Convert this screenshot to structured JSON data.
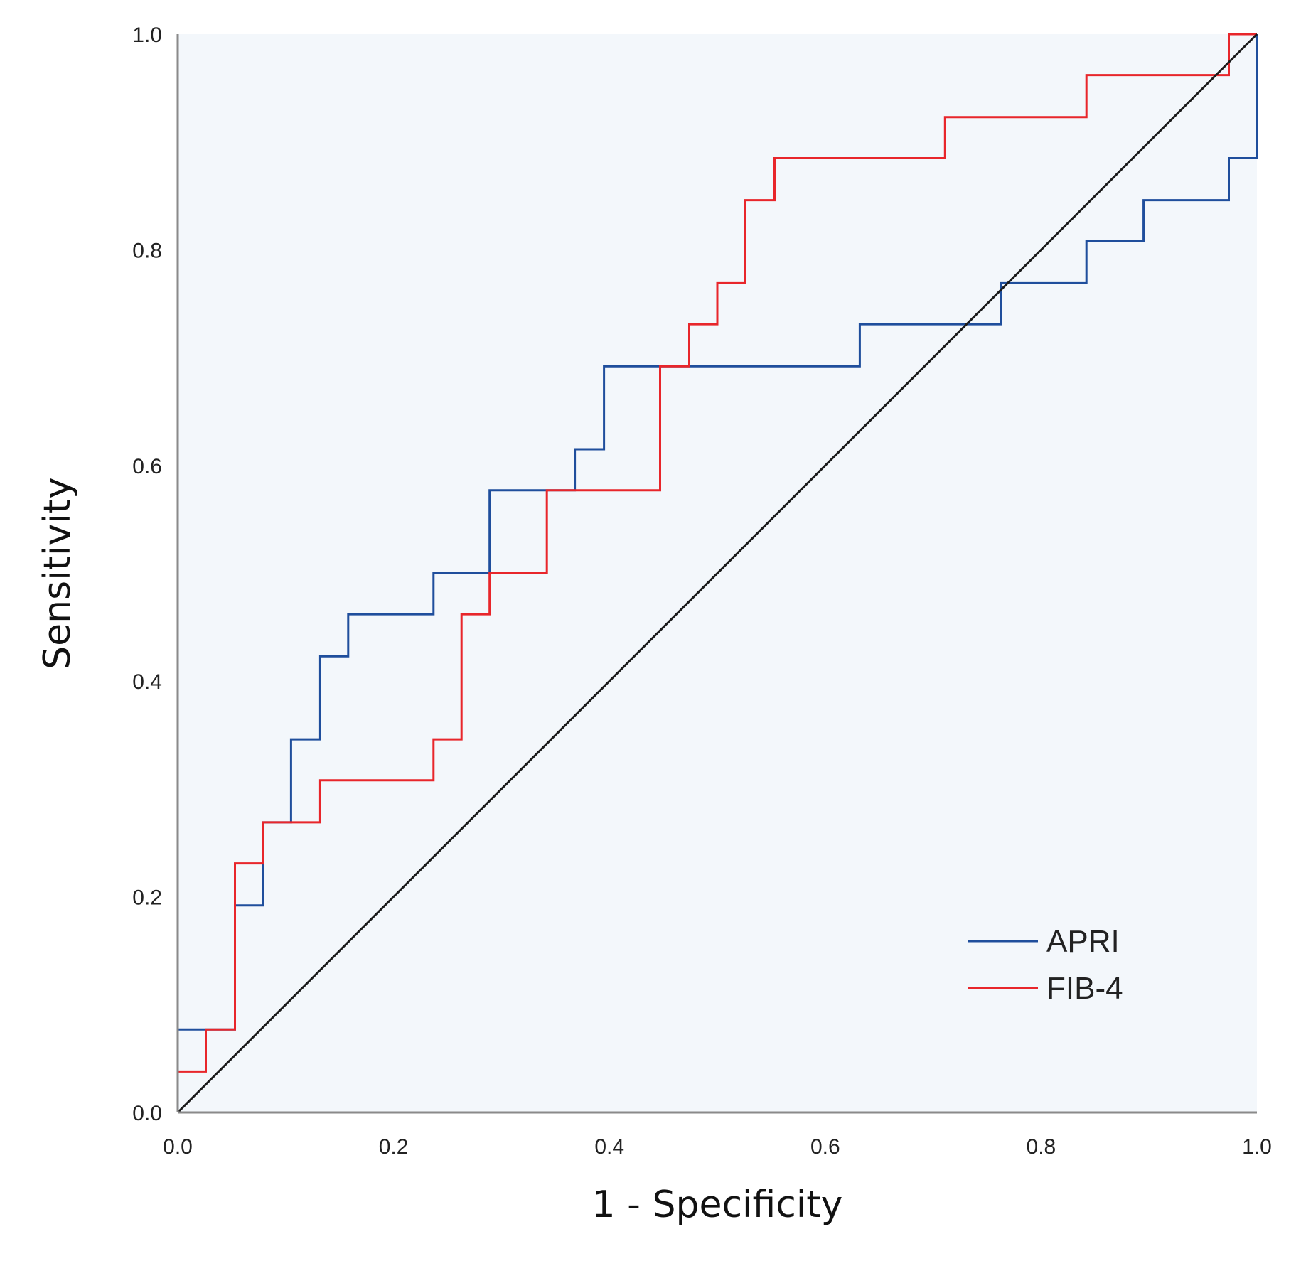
{
  "chart_data": {
    "type": "line",
    "title": "",
    "xlabel": "1 - Specificity",
    "ylabel": "Sensitivity",
    "xlim": [
      0,
      1
    ],
    "ylim": [
      0,
      1
    ],
    "xticks": [
      "0.0",
      "0.2",
      "0.4",
      "0.6",
      "0.8",
      "1.0"
    ],
    "yticks": [
      "0.0",
      "0.2",
      "0.4",
      "0.6",
      "0.8",
      "1.0"
    ],
    "grid": false,
    "legend_position": "bottom-right",
    "plot_background": "#f3f7fb",
    "series": [
      {
        "name": "APRI",
        "color": "#1f4e9c",
        "step": true,
        "points": [
          [
            0,
            0
          ],
          [
            0,
            0.077
          ],
          [
            0.053,
            0.077
          ],
          [
            0.053,
            0.192
          ],
          [
            0.079,
            0.192
          ],
          [
            0.079,
            0.269
          ],
          [
            0.105,
            0.269
          ],
          [
            0.105,
            0.346
          ],
          [
            0.132,
            0.346
          ],
          [
            0.132,
            0.423
          ],
          [
            0.158,
            0.423
          ],
          [
            0.158,
            0.462
          ],
          [
            0.237,
            0.462
          ],
          [
            0.237,
            0.5
          ],
          [
            0.289,
            0.5
          ],
          [
            0.289,
            0.577
          ],
          [
            0.368,
            0.577
          ],
          [
            0.368,
            0.615
          ],
          [
            0.395,
            0.615
          ],
          [
            0.395,
            0.692
          ],
          [
            0.632,
            0.692
          ],
          [
            0.632,
            0.731
          ],
          [
            0.763,
            0.731
          ],
          [
            0.763,
            0.769
          ],
          [
            0.842,
            0.769
          ],
          [
            0.842,
            0.808
          ],
          [
            0.895,
            0.808
          ],
          [
            0.895,
            0.846
          ],
          [
            0.974,
            0.846
          ],
          [
            0.974,
            0.885
          ],
          [
            1,
            0.885
          ],
          [
            1,
            1
          ]
        ]
      },
      {
        "name": "FIB-4",
        "color": "#e8262b",
        "step": true,
        "points": [
          [
            0,
            0
          ],
          [
            0,
            0.038
          ],
          [
            0.026,
            0.038
          ],
          [
            0.026,
            0.077
          ],
          [
            0.053,
            0.077
          ],
          [
            0.053,
            0.231
          ],
          [
            0.079,
            0.231
          ],
          [
            0.079,
            0.269
          ],
          [
            0.132,
            0.269
          ],
          [
            0.132,
            0.308
          ],
          [
            0.237,
            0.308
          ],
          [
            0.237,
            0.346
          ],
          [
            0.263,
            0.346
          ],
          [
            0.263,
            0.462
          ],
          [
            0.289,
            0.462
          ],
          [
            0.289,
            0.5
          ],
          [
            0.342,
            0.5
          ],
          [
            0.342,
            0.577
          ],
          [
            0.447,
            0.577
          ],
          [
            0.447,
            0.692
          ],
          [
            0.474,
            0.692
          ],
          [
            0.474,
            0.731
          ],
          [
            0.5,
            0.731
          ],
          [
            0.5,
            0.769
          ],
          [
            0.526,
            0.769
          ],
          [
            0.526,
            0.846
          ],
          [
            0.553,
            0.846
          ],
          [
            0.553,
            0.885
          ],
          [
            0.711,
            0.885
          ],
          [
            0.711,
            0.923
          ],
          [
            0.842,
            0.923
          ],
          [
            0.842,
            0.962
          ],
          [
            0.974,
            0.962
          ],
          [
            0.974,
            1
          ],
          [
            1,
            1
          ]
        ]
      },
      {
        "name": "Reference line",
        "color": "#1a1a1a",
        "step": false,
        "show_in_legend": false,
        "points": [
          [
            0,
            0
          ],
          [
            1,
            1
          ]
        ]
      }
    ]
  }
}
